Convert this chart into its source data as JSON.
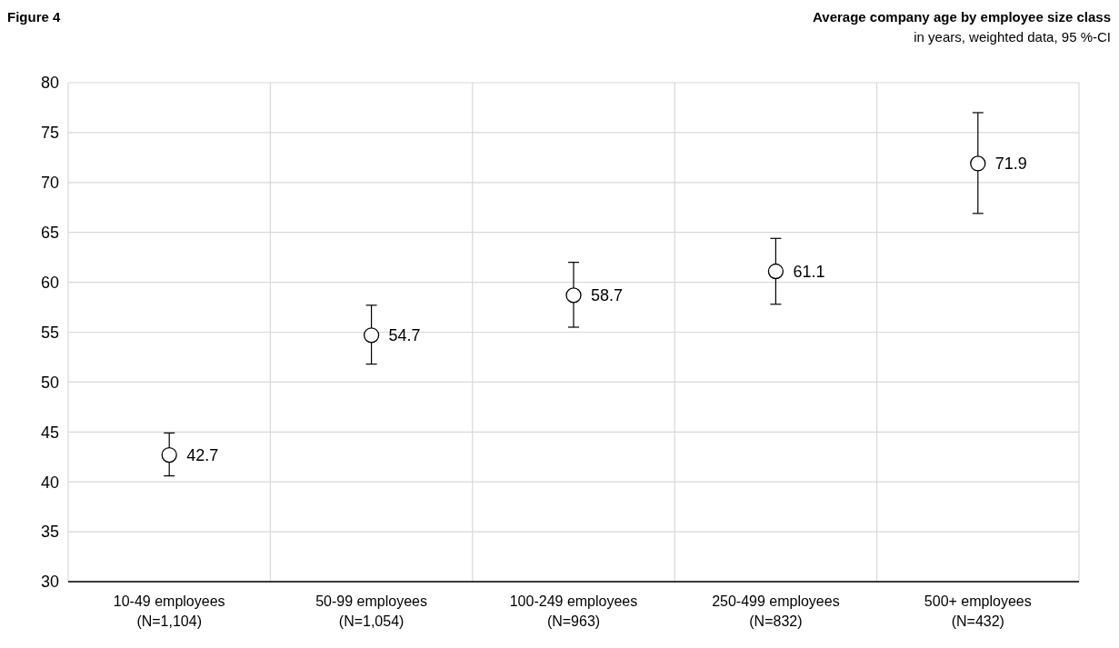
{
  "chart_data": {
    "type": "scatter",
    "title": "Average company age by employee size class",
    "subtitle": "in years, weighted data, 95 %-CI",
    "annotations": [
      "Figure 4"
    ],
    "categories": [
      "10-49 employees\n(N=1,104)",
      "50-99 employees\n(N=1,054)",
      "100-249 employees\n(N=963)",
      "250-499 employees\n(N=832)",
      "500+ employees\n(N=432)"
    ],
    "values": [
      42.7,
      54.7,
      58.7,
      61.1,
      71.9
    ],
    "errors": [
      [
        40.6,
        44.9
      ],
      [
        51.8,
        57.7
      ],
      [
        55.5,
        62.0
      ],
      [
        57.8,
        64.4
      ],
      [
        66.9,
        77.0
      ]
    ],
    "color": "#000000",
    "marker": "circle",
    "data_labels": true,
    "grid": true,
    "ylim": [
      30,
      80
    ],
    "yticks": [
      30,
      35,
      40,
      45,
      50,
      55,
      60,
      65,
      70,
      75,
      80
    ]
  }
}
